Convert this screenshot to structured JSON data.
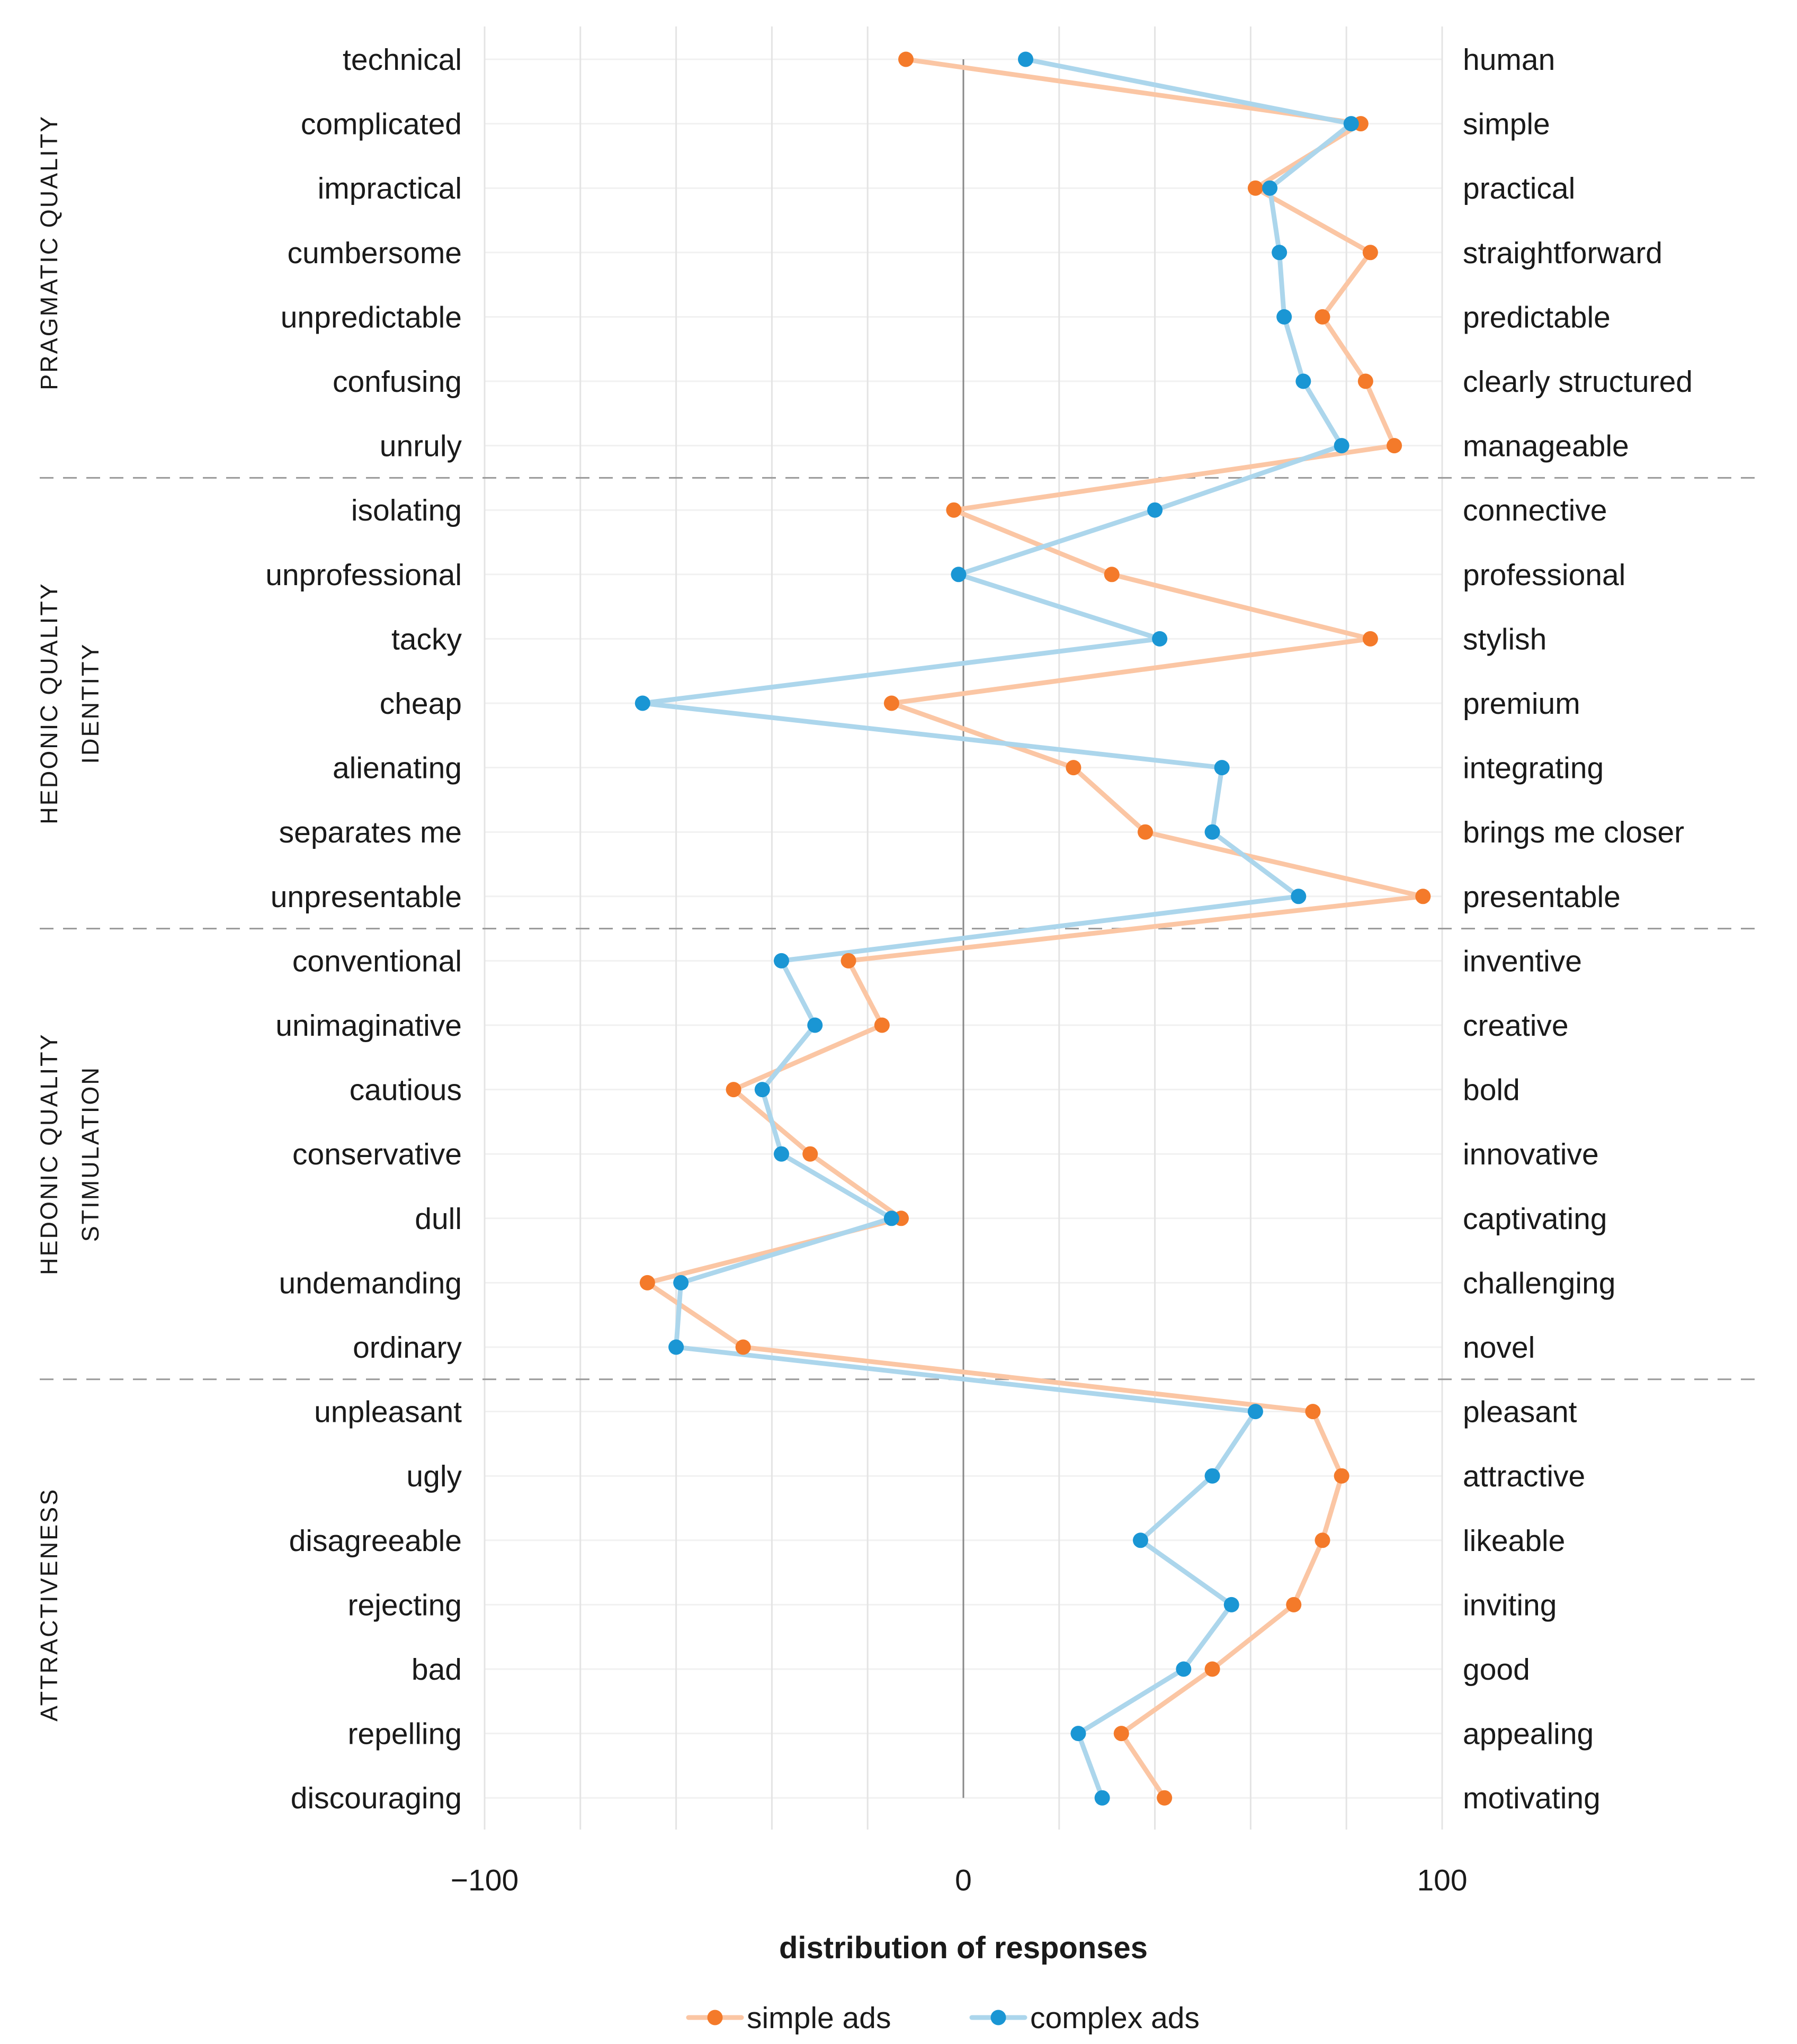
{
  "chart_data": {
    "type": "line",
    "orientation": "horizontal",
    "xlabel": "distribution of responses",
    "xlim": [
      -100,
      100
    ],
    "xticks": [
      -100,
      0,
      100
    ],
    "xtick_labels": [
      "−100",
      "0",
      "100"
    ],
    "grid": "vertical major and minor lines every 20 units",
    "legend_position": "bottom",
    "colors": {
      "simple": "#f47a2a",
      "simple_line": "#fbc6a4",
      "complex": "#1a96d4",
      "complex_line": "#acd6ec",
      "zero_line": "#888888",
      "grid": "#e4e4e4",
      "separator": "#999999"
    },
    "groups": [
      {
        "label_lines": [
          "PRAGMATIC QUALITY"
        ],
        "start": 0,
        "end": 6
      },
      {
        "label_lines": [
          "HEDONIC QUALITY",
          "IDENTITY"
        ],
        "start": 7,
        "end": 13
      },
      {
        "label_lines": [
          "HEDONIC QUALITY",
          "STIMULATION"
        ],
        "start": 14,
        "end": 20
      },
      {
        "label_lines": [
          "ATTRACTIVENESS"
        ],
        "start": 21,
        "end": 27
      }
    ],
    "categories": [
      {
        "left": "technical",
        "right": "human"
      },
      {
        "left": "complicated",
        "right": "simple"
      },
      {
        "left": "impractical",
        "right": "practical"
      },
      {
        "left": "cumbersome",
        "right": "straightforward"
      },
      {
        "left": "unpredictable",
        "right": "predictable"
      },
      {
        "left": "confusing",
        "right": "clearly structured"
      },
      {
        "left": "unruly",
        "right": "manageable"
      },
      {
        "left": "isolating",
        "right": "connective"
      },
      {
        "left": "unprofessional",
        "right": "professional"
      },
      {
        "left": "tacky",
        "right": "stylish"
      },
      {
        "left": "cheap",
        "right": "premium"
      },
      {
        "left": "alienating",
        "right": "integrating"
      },
      {
        "left": "separates me",
        "right": "brings me closer"
      },
      {
        "left": "unpresentable",
        "right": "presentable"
      },
      {
        "left": "conventional",
        "right": "inventive"
      },
      {
        "left": "unimaginative",
        "right": "creative"
      },
      {
        "left": "cautious",
        "right": "bold"
      },
      {
        "left": "conservative",
        "right": "innovative"
      },
      {
        "left": "dull",
        "right": "captivating"
      },
      {
        "left": "undemanding",
        "right": "challenging"
      },
      {
        "left": "ordinary",
        "right": "novel"
      },
      {
        "left": "unpleasant",
        "right": "pleasant"
      },
      {
        "left": "ugly",
        "right": "attractive"
      },
      {
        "left": "disagreeable",
        "right": "likeable"
      },
      {
        "left": "rejecting",
        "right": "inviting"
      },
      {
        "left": "bad",
        "right": "good"
      },
      {
        "left": "repelling",
        "right": "appealing"
      },
      {
        "left": "discouraging",
        "right": "motivating"
      }
    ],
    "series": [
      {
        "name": "simple ads",
        "key": "simple",
        "values": [
          -12,
          83,
          61,
          85,
          75,
          84,
          90,
          -2,
          31,
          85,
          -15,
          23,
          38,
          96,
          -24,
          -17,
          -48,
          -32,
          -13,
          -66,
          -46,
          73,
          79,
          75,
          69,
          52,
          33,
          42
        ]
      },
      {
        "name": "complex ads",
        "key": "complex",
        "values": [
          13,
          81,
          64,
          66,
          67,
          71,
          79,
          40,
          -1,
          41,
          -67,
          54,
          52,
          70,
          -38,
          -31,
          -42,
          -38,
          -15,
          -59,
          -60,
          61,
          52,
          37,
          56,
          46,
          24,
          29
        ]
      }
    ]
  }
}
